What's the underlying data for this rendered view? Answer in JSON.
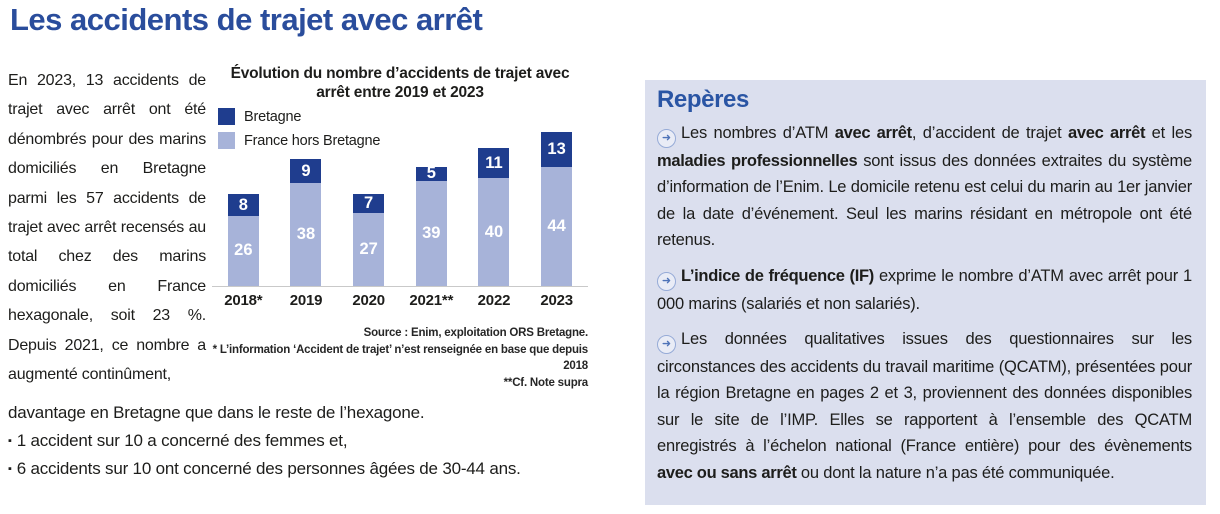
{
  "page_title": "Les accidents de trajet avec arrêt",
  "intro_paragraph": "En 2023, 13 accidents de trajet avec arrêt ont été dénombrés pour des marins domiciliés en Bretagne parmi les 57 accidents de trajet avec arrêt recensés au total chez des marins domiciliés en France hexagonale, soit 23 %. Depuis 2021, ce nombre a augmenté continûment,",
  "continuation_line": "davantage en Bretagne que dans le reste de l’hexagone.",
  "bullet_marker": "▪",
  "bullets": [
    "1 accident sur 10  a concerné des femmes et,",
    "6 accidents sur 10 ont concerné des personnes âgées de 30-44 ans."
  ],
  "chart_data": {
    "type": "bar",
    "stacked": true,
    "title": "Évolution du nombre d’accidents de trajet avec arrêt entre 2019 et 2023",
    "categories": [
      "2018*",
      "2019",
      "2020",
      "2021**",
      "2022",
      "2023"
    ],
    "series": [
      {
        "name": "Bretagne",
        "color": "#1f3d8e",
        "values": [
          8,
          9,
          7,
          5,
          11,
          13
        ]
      },
      {
        "name": "France hors Bretagne",
        "color": "#a7b3d9",
        "values": [
          26,
          38,
          27,
          39,
          40,
          44
        ]
      }
    ],
    "totals": [
      34,
      47,
      34,
      44,
      51,
      57
    ],
    "value_labels": "inside-white-bold",
    "legend_position": "top-left",
    "grid": false,
    "xlabel": "",
    "ylabel": ""
  },
  "source_lines": [
    "Source : Enim, exploitation ORS Bretagne.",
    "* L’information ‘Accident de trajet’ n’est renseignée en base que depuis 2018",
    "**Cf. Note supra"
  ],
  "reperes": {
    "heading": "Repères",
    "items": [
      {
        "segments": [
          {
            "text": "Les nombres d’ATM ",
            "bold": false
          },
          {
            "text": "avec arrêt",
            "bold": true
          },
          {
            "text": ", d’accident de trajet ",
            "bold": false
          },
          {
            "text": "avec arrêt",
            "bold": true
          },
          {
            "text": " et les ",
            "bold": false
          },
          {
            "text": "maladies professionnelles",
            "bold": true
          },
          {
            "text": " sont issus des données extraites du système d’information de l’Enim.  Le domicile retenu est celui du marin au 1er janvier de la date d’événement. Seul les marins résidant en métropole ont été retenus.",
            "bold": false
          }
        ]
      },
      {
        "segments": [
          {
            "text": "L’indice de fréquence (IF)",
            "bold": true
          },
          {
            "text": " exprime le nombre d’ATM avec arrêt pour 1 000 marins (salariés et non salariés).",
            "bold": false
          }
        ]
      },
      {
        "segments": [
          {
            "text": "Les données qualitatives issues des questionnaires sur les circonstances des accidents du travail maritime (QCATM), présentées pour la région Bretagne en pages 2 et 3, proviennent des données disponibles sur le site de l’IMP. Elles se rapportent à l’ensemble des QCATM enregistrés à l’échelon national (France entière) pour des évènements ",
            "bold": false
          },
          {
            "text": "avec ou sans arrêt",
            "bold": true
          },
          {
            "text": " ou dont la nature n’a pas été communiquée.",
            "bold": false
          }
        ]
      }
    ]
  },
  "icons": {
    "arrow_circle": "➜"
  },
  "colors": {
    "title_blue": "#2a4d9c",
    "reperes_heading_blue": "#2a55a4",
    "reperes_background": "#dbdfee",
    "bar_dark_blue": "#1f3d8e",
    "bar_light_blue": "#a7b3d9",
    "axis_line": "#c9c9c9",
    "body_text": "#1d1d1b"
  }
}
